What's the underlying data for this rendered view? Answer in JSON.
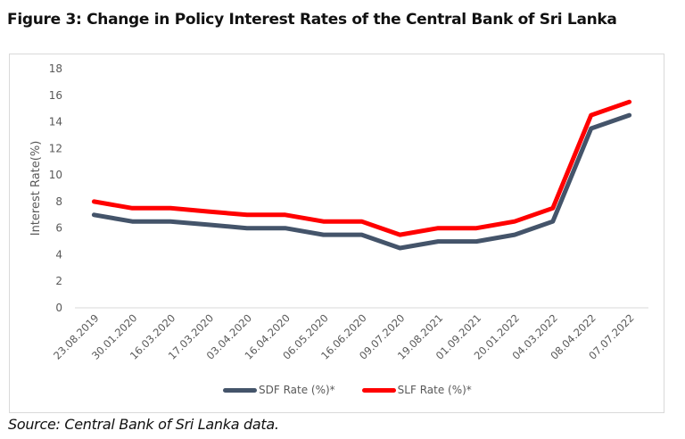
{
  "figure": {
    "title": "Figure 3: Change in Policy Interest Rates of the Central Bank of Sri Lanka",
    "source": "Source: Central Bank of Sri Lanka data."
  },
  "chart_data": {
    "type": "line",
    "title": "Figure 3: Change in Policy Interest Rates of the Central Bank of Sri Lanka",
    "xlabel": "",
    "ylabel": "Interest Rate(%)",
    "ylim": [
      0,
      18
    ],
    "yticks": [
      "0",
      "2",
      "4",
      "6",
      "8",
      "10",
      "12",
      "14",
      "16",
      "18"
    ],
    "grid": false,
    "legend_position": "bottom",
    "categories": [
      "23.08.2019",
      "30.01.2020",
      "16.03.2020",
      "17.03.2020",
      "03.04.2020",
      "16.04.2020",
      "06.05.2020",
      "16.06.2020",
      "09.07.2020",
      "19.08.2021",
      "01.09.2021",
      "20.01.2022",
      "04.03.2022",
      "08.04.2022",
      "07.07.2022"
    ],
    "series": [
      {
        "name": "SDF Rate (%)*",
        "color": "#44546a",
        "values": [
          7,
          6.5,
          6.5,
          6.25,
          6,
          6,
          5.5,
          5.5,
          4.5,
          5,
          5,
          5.5,
          6.5,
          13.5,
          14.5
        ]
      },
      {
        "name": "SLF Rate (%)*",
        "color": "#ff0000",
        "values": [
          8,
          7.5,
          7.5,
          7.25,
          7,
          7,
          6.5,
          6.5,
          5.5,
          6,
          6,
          6.5,
          7.5,
          14.5,
          15.5
        ]
      }
    ]
  }
}
